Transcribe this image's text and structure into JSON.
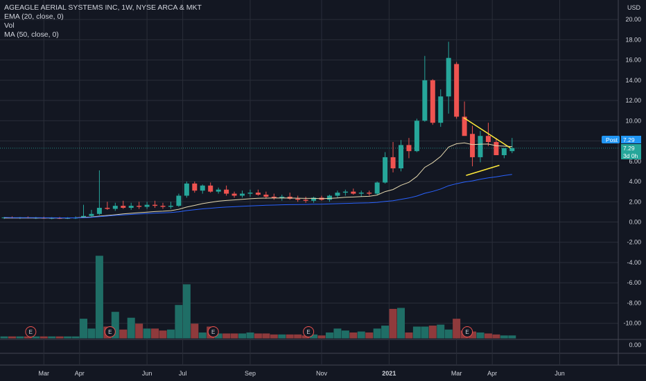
{
  "header": {
    "title": "AGEAGLE AERIAL SYSTEMS INC, 1W, NYSE ARCA & MKT",
    "indicators": [
      "EMA (20, close, 0)",
      "Vol",
      "MA (50, close, 0)"
    ],
    "currency": "USD"
  },
  "price_tags": {
    "post_label": "Post",
    "post_value": "7.29",
    "last_value": "7.29",
    "countdown": "3d 0h"
  },
  "colors": {
    "background": "#131722",
    "grid": "#2a2e39",
    "up": "#26a69a",
    "down": "#ef5350",
    "up_volume": "#1f6e66",
    "down_volume": "#8f3a3c",
    "ema": "#e6d9b0",
    "ma": "#2962ff",
    "trendline": "#ffeb3b",
    "post_tag": "#2196f3"
  },
  "chart_data": {
    "type": "candlestick",
    "timeframe": "1W",
    "price_axis": {
      "ticks": [
        "20.00",
        "18.00",
        "16.00",
        "14.00",
        "12.00",
        "10.00",
        "8.00",
        "6.00",
        "4.00",
        "2.00",
        "0.00",
        "-2.00",
        "-4.00",
        "-6.00",
        "-8.00",
        "-10.00"
      ],
      "ylim": [
        -11,
        21
      ]
    },
    "volume_axis_ticks": [
      "0.00"
    ],
    "x_ticks": [
      {
        "label": "Mar",
        "bar": 5
      },
      {
        "label": "Apr",
        "bar": 9.5
      },
      {
        "label": "Jun",
        "bar": 18
      },
      {
        "label": "Jul",
        "bar": 22.5
      },
      {
        "label": "Sep",
        "bar": 31
      },
      {
        "label": "Nov",
        "bar": 40
      },
      {
        "label": "2021",
        "bar": 48.5,
        "bold": true
      },
      {
        "label": "Mar",
        "bar": 57
      },
      {
        "label": "Apr",
        "bar": 61.5
      },
      {
        "label": "Jun",
        "bar": 70
      }
    ],
    "ohlc": [
      [
        0.4,
        0.5,
        0.3,
        0.45
      ],
      [
        0.45,
        0.55,
        0.35,
        0.4
      ],
      [
        0.4,
        0.5,
        0.3,
        0.45
      ],
      [
        0.45,
        0.55,
        0.35,
        0.4
      ],
      [
        0.4,
        0.5,
        0.3,
        0.42
      ],
      [
        0.42,
        0.52,
        0.32,
        0.38
      ],
      [
        0.38,
        0.48,
        0.28,
        0.4
      ],
      [
        0.4,
        0.5,
        0.3,
        0.38
      ],
      [
        0.38,
        0.48,
        0.3,
        0.4
      ],
      [
        0.4,
        0.55,
        0.3,
        0.42
      ],
      [
        0.42,
        1.7,
        0.4,
        0.6
      ],
      [
        0.6,
        1.2,
        0.5,
        0.8
      ],
      [
        0.8,
        5.1,
        0.7,
        1.4
      ],
      [
        1.4,
        2.0,
        1.2,
        1.3
      ],
      [
        1.3,
        1.9,
        1.1,
        1.6
      ],
      [
        1.6,
        2.1,
        1.3,
        1.4
      ],
      [
        1.4,
        1.9,
        1.2,
        1.6
      ],
      [
        1.6,
        2.0,
        1.3,
        1.5
      ],
      [
        1.5,
        2.0,
        1.3,
        1.7
      ],
      [
        1.7,
        2.1,
        1.4,
        1.6
      ],
      [
        1.6,
        1.9,
        1.3,
        1.5
      ],
      [
        1.5,
        2.0,
        1.3,
        1.6
      ],
      [
        1.6,
        2.8,
        1.5,
        2.6
      ],
      [
        2.6,
        4.0,
        2.4,
        3.8
      ],
      [
        3.8,
        4.0,
        2.9,
        3.1
      ],
      [
        3.1,
        3.7,
        2.8,
        3.6
      ],
      [
        3.6,
        3.9,
        2.9,
        3.0
      ],
      [
        3.0,
        3.4,
        2.8,
        3.2
      ],
      [
        3.2,
        3.6,
        2.6,
        2.8
      ],
      [
        2.8,
        3.0,
        2.4,
        2.6
      ],
      [
        2.6,
        3.1,
        2.4,
        2.8
      ],
      [
        2.8,
        3.2,
        2.5,
        2.9
      ],
      [
        2.9,
        3.2,
        2.6,
        2.7
      ],
      [
        2.7,
        3.0,
        2.3,
        2.5
      ],
      [
        2.5,
        2.8,
        2.2,
        2.4
      ],
      [
        2.4,
        2.7,
        2.1,
        2.5
      ],
      [
        2.5,
        2.9,
        2.2,
        2.3
      ],
      [
        2.3,
        2.6,
        2.0,
        2.2
      ],
      [
        2.2,
        2.5,
        1.9,
        2.1
      ],
      [
        2.1,
        2.5,
        1.9,
        2.4
      ],
      [
        2.4,
        2.6,
        2.1,
        2.2
      ],
      [
        2.2,
        2.7,
        2.0,
        2.6
      ],
      [
        2.6,
        3.1,
        2.4,
        2.9
      ],
      [
        2.9,
        3.2,
        2.6,
        3.0
      ],
      [
        3.0,
        3.3,
        2.7,
        2.8
      ],
      [
        2.8,
        3.1,
        2.5,
        2.9
      ],
      [
        2.9,
        3.1,
        2.6,
        2.8
      ],
      [
        2.8,
        4.0,
        2.7,
        3.9
      ],
      [
        3.9,
        6.9,
        3.8,
        6.4
      ],
      [
        6.4,
        7.9,
        4.9,
        5.3
      ],
      [
        5.3,
        8.1,
        5.0,
        7.6
      ],
      [
        7.6,
        8.3,
        6.3,
        7.0
      ],
      [
        7.0,
        10.2,
        6.9,
        10.0
      ],
      [
        10.0,
        16.4,
        9.9,
        14.0
      ],
      [
        14.0,
        14.1,
        9.6,
        9.8
      ],
      [
        9.8,
        13.1,
        9.4,
        12.4
      ],
      [
        12.4,
        17.8,
        10.7,
        16.2
      ],
      [
        15.6,
        15.8,
        10.2,
        10.4
      ],
      [
        10.4,
        11.9,
        8.6,
        8.5
      ],
      [
        8.7,
        9.5,
        5.5,
        6.4
      ],
      [
        6.4,
        9.0,
        5.9,
        8.5
      ],
      [
        8.5,
        9.8,
        7.5,
        7.9
      ],
      [
        7.9,
        8.3,
        6.7,
        6.6
      ],
      [
        6.6,
        7.2,
        6.3,
        7.3
      ],
      [
        7.0,
        8.3,
        6.8,
        7.3
      ]
    ],
    "volume_millions": [
      0.2,
      0.2,
      0.2,
      0.2,
      0.2,
      0.2,
      0.2,
      0.2,
      0.2,
      0.2,
      2.0,
      1.0,
      8.4,
      1.2,
      2.7,
      0.9,
      2.1,
      1.5,
      1.0,
      1.0,
      0.8,
      0.9,
      3.4,
      5.5,
      1.5,
      0.6,
      1.2,
      0.5,
      0.5,
      0.5,
      0.5,
      0.6,
      0.5,
      0.5,
      0.4,
      0.4,
      0.4,
      0.4,
      0.3,
      0.4,
      0.3,
      0.6,
      1.0,
      0.8,
      0.6,
      0.7,
      0.6,
      1.0,
      1.3,
      3.0,
      3.1,
      0.6,
      1.2,
      1.2,
      1.3,
      1.4,
      0.9,
      2.0,
      0.8,
      0.7,
      0.6,
      0.5,
      0.4,
      0.3,
      0.3
    ],
    "ema20": [
      0.4,
      0.4,
      0.4,
      0.4,
      0.4,
      0.4,
      0.4,
      0.4,
      0.4,
      0.42,
      0.46,
      0.5,
      0.58,
      0.65,
      0.72,
      0.8,
      0.86,
      0.92,
      0.98,
      1.03,
      1.07,
      1.12,
      1.26,
      1.48,
      1.64,
      1.82,
      1.94,
      2.06,
      2.13,
      2.18,
      2.24,
      2.3,
      2.34,
      2.36,
      2.37,
      2.38,
      2.37,
      2.35,
      2.33,
      2.33,
      2.31,
      2.33,
      2.38,
      2.44,
      2.47,
      2.51,
      2.54,
      2.66,
      3.0,
      3.21,
      3.63,
      3.92,
      4.5,
      5.4,
      5.86,
      6.48,
      7.4,
      7.73,
      7.81,
      7.64,
      7.69,
      7.7,
      7.53,
      7.49,
      7.45
    ],
    "ma50": [
      null,
      null,
      null,
      null,
      null,
      null,
      null,
      null,
      null,
      null,
      null,
      null,
      null,
      null,
      null,
      null,
      null,
      null,
      null,
      null,
      null,
      null,
      null,
      null,
      null,
      null,
      null,
      null,
      null,
      null,
      null,
      null,
      null,
      null,
      null,
      null,
      null,
      null,
      null,
      null,
      null,
      null,
      null,
      null,
      null,
      null,
      null,
      null,
      null,
      null,
      null,
      null,
      null,
      null,
      null,
      null,
      null,
      null,
      null,
      null,
      null,
      null,
      null,
      null,
      null
    ],
    "trendlines": [
      {
        "from": [
          57.9,
          10.3
        ],
        "to": [
          63.8,
          7.3
        ]
      },
      {
        "from": [
          58.2,
          4.6
        ],
        "to": [
          62.4,
          5.6
        ]
      }
    ],
    "earnings_markers": {
      "label": "E",
      "bars": [
        3,
        13,
        26,
        38,
        58
      ]
    }
  }
}
